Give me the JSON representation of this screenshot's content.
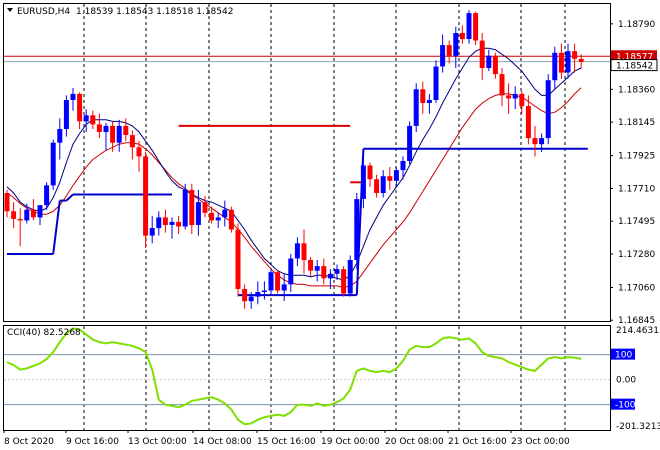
{
  "header": {
    "symbol": "EURUSD,H4",
    "ohlc": "1.18539 1.18543 1.18518 1.18542"
  },
  "colors": {
    "bull": "#0000ff",
    "bear": "#ff0000",
    "ma_fast": "#000080",
    "ma_slow": "#cc0000",
    "band": "#0000cc",
    "band_upper": "#dd0000",
    "cci": "#7fe000",
    "price_line": "#cc0000",
    "grid": "#000000",
    "level_bg": "#0000ff"
  },
  "chart_data": [
    {
      "type": "candlestick",
      "title": "EURUSD,H4",
      "price_axis_labels": [
        "1.18790",
        "1.18575",
        "1.18360",
        "1.18145",
        "1.17925",
        "1.17710",
        "1.17495",
        "1.17280",
        "1.17060",
        "1.16845"
      ],
      "ylim": [
        1.1684,
        1.1892
      ],
      "current_price_label": "1.18542",
      "upper_price_label": "1.18577",
      "horizontal_line": 1.18577,
      "x_tick_labels": [
        "8 Oct 2020",
        "9 Oct 16:00",
        "13 Oct 00:00",
        "14 Oct 08:00",
        "15 Oct 16:00",
        "19 Oct 00:00",
        "20 Oct 08:00",
        "21 Oct 16:00",
        "23 Oct 00:00"
      ],
      "candles": [
        [
          1.1768,
          1.177,
          1.1752,
          1.1756
        ],
        [
          1.1756,
          1.1762,
          1.1745,
          1.1751
        ],
        [
          1.1751,
          1.1758,
          1.1733,
          1.175
        ],
        [
          1.175,
          1.1761,
          1.1748,
          1.1757
        ],
        [
          1.1757,
          1.1764,
          1.175,
          1.1752
        ],
        [
          1.1752,
          1.176,
          1.1747,
          1.176
        ],
        [
          1.176,
          1.1775,
          1.1757,
          1.1773
        ],
        [
          1.1773,
          1.1803,
          1.177,
          1.1801
        ],
        [
          1.1801,
          1.1817,
          1.179,
          1.181
        ],
        [
          1.181,
          1.1832,
          1.1805,
          1.1829
        ],
        [
          1.1829,
          1.1837,
          1.1822,
          1.1833
        ],
        [
          1.1833,
          1.1834,
          1.181,
          1.1815
        ],
        [
          1.1815,
          1.1823,
          1.1808,
          1.1819
        ],
        [
          1.1819,
          1.1822,
          1.181,
          1.1813
        ],
        [
          1.1813,
          1.182,
          1.1804,
          1.1808
        ],
        [
          1.1808,
          1.1814,
          1.1796,
          1.1812
        ],
        [
          1.1812,
          1.1815,
          1.1795,
          1.1801
        ],
        [
          1.1801,
          1.1816,
          1.1795,
          1.1812
        ],
        [
          1.1812,
          1.1817,
          1.1802,
          1.1806
        ],
        [
          1.1806,
          1.1809,
          1.179,
          1.1798
        ],
        [
          1.1798,
          1.1802,
          1.1782,
          1.1792
        ],
        [
          1.1792,
          1.1795,
          1.1732,
          1.174
        ],
        [
          1.174,
          1.1753,
          1.1735,
          1.1745
        ],
        [
          1.1745,
          1.1756,
          1.174,
          1.1752
        ],
        [
          1.1752,
          1.1757,
          1.1742,
          1.1747
        ],
        [
          1.1747,
          1.1752,
          1.1738,
          1.1749
        ],
        [
          1.1749,
          1.1753,
          1.1741,
          1.1746
        ],
        [
          1.1746,
          1.1774,
          1.1744,
          1.177
        ],
        [
          1.177,
          1.1774,
          1.1741,
          1.1747
        ],
        [
          1.1747,
          1.177,
          1.174,
          1.1762
        ],
        [
          1.1762,
          1.1766,
          1.1752,
          1.1755
        ],
        [
          1.1755,
          1.1759,
          1.1748,
          1.175
        ],
        [
          1.175,
          1.1755,
          1.1745,
          1.1752
        ],
        [
          1.1752,
          1.1763,
          1.1746,
          1.1757
        ],
        [
          1.1757,
          1.1759,
          1.1742,
          1.1744
        ],
        [
          1.1744,
          1.1748,
          1.17,
          1.1705
        ],
        [
          1.1705,
          1.1708,
          1.1692,
          1.1697
        ],
        [
          1.1697,
          1.1703,
          1.1692,
          1.17
        ],
        [
          1.17,
          1.171,
          1.1695,
          1.1703
        ],
        [
          1.1703,
          1.171,
          1.1698,
          1.1704
        ],
        [
          1.1704,
          1.1718,
          1.1702,
          1.1716
        ],
        [
          1.1716,
          1.1717,
          1.1702,
          1.1704
        ],
        [
          1.1704,
          1.1715,
          1.1697,
          1.1708
        ],
        [
          1.1708,
          1.1728,
          1.1703,
          1.1725
        ],
        [
          1.1725,
          1.1739,
          1.172,
          1.1735
        ],
        [
          1.1735,
          1.1744,
          1.1715,
          1.1724
        ],
        [
          1.1724,
          1.1726,
          1.1713,
          1.1717
        ],
        [
          1.1717,
          1.1724,
          1.171,
          1.172
        ],
        [
          1.172,
          1.1725,
          1.1708,
          1.1712
        ],
        [
          1.1712,
          1.1718,
          1.1705,
          1.1715
        ],
        [
          1.1715,
          1.1721,
          1.1711,
          1.1718
        ],
        [
          1.1718,
          1.172,
          1.17,
          1.1702
        ],
        [
          1.1702,
          1.1727,
          1.17,
          1.1724
        ],
        [
          1.1724,
          1.1768,
          1.1718,
          1.1764
        ],
        [
          1.1764,
          1.179,
          1.1758,
          1.1786
        ],
        [
          1.1786,
          1.1788,
          1.1772,
          1.1777
        ],
        [
          1.1777,
          1.178,
          1.1765,
          1.1768
        ],
        [
          1.1768,
          1.1783,
          1.1765,
          1.1779
        ],
        [
          1.1779,
          1.1785,
          1.177,
          1.1776
        ],
        [
          1.1776,
          1.1785,
          1.1772,
          1.1783
        ],
        [
          1.1783,
          1.1792,
          1.1777,
          1.1789
        ],
        [
          1.1789,
          1.1815,
          1.1787,
          1.1812
        ],
        [
          1.1812,
          1.184,
          1.1808,
          1.1836
        ],
        [
          1.1836,
          1.1841,
          1.182,
          1.1827
        ],
        [
          1.1827,
          1.1833,
          1.182,
          1.1829
        ],
        [
          1.1829,
          1.1855,
          1.1827,
          1.1851
        ],
        [
          1.1851,
          1.1872,
          1.1847,
          1.1865
        ],
        [
          1.1865,
          1.1868,
          1.1853,
          1.1858
        ],
        [
          1.1858,
          1.1877,
          1.185,
          1.1873
        ],
        [
          1.1873,
          1.1878,
          1.1866,
          1.1869
        ],
        [
          1.1869,
          1.1888,
          1.1866,
          1.1886
        ],
        [
          1.1886,
          1.1887,
          1.1865,
          1.1868
        ],
        [
          1.1868,
          1.1873,
          1.1842,
          1.185
        ],
        [
          1.185,
          1.1862,
          1.1848,
          1.1858
        ],
        [
          1.1858,
          1.186,
          1.1843,
          1.1846
        ],
        [
          1.1846,
          1.185,
          1.1825,
          1.1832
        ],
        [
          1.1832,
          1.184,
          1.182,
          1.183
        ],
        [
          1.183,
          1.1838,
          1.1823,
          1.1833
        ],
        [
          1.1833,
          1.1835,
          1.182,
          1.1825
        ],
        [
          1.1825,
          1.1832,
          1.18,
          1.1804
        ],
        [
          1.1804,
          1.1812,
          1.1792,
          1.18
        ],
        [
          1.18,
          1.1807,
          1.1795,
          1.1804
        ],
        [
          1.1804,
          1.1846,
          1.18,
          1.1842
        ],
        [
          1.1842,
          1.1864,
          1.1836,
          1.186
        ],
        [
          1.186,
          1.1866,
          1.1843,
          1.1847
        ],
        [
          1.1847,
          1.1866,
          1.1843,
          1.1861
        ],
        [
          1.1861,
          1.1866,
          1.1847,
          1.1856
        ],
        [
          1.1856,
          1.1859,
          1.185,
          1.1854
        ]
      ],
      "ma_fast": [
        1.1772,
        1.1768,
        1.1762,
        1.1759,
        1.1757,
        1.1756,
        1.1758,
        1.1765,
        1.1775,
        1.1788,
        1.18,
        1.1807,
        1.1813,
        1.1816,
        1.1816,
        1.1816,
        1.1815,
        1.1815,
        1.1814,
        1.1812,
        1.1808,
        1.1802,
        1.1796,
        1.1789,
        1.1782,
        1.1776,
        1.1772,
        1.177,
        1.1767,
        1.1765,
        1.1763,
        1.1762,
        1.176,
        1.1758,
        1.1756,
        1.175,
        1.1744,
        1.1737,
        1.1731,
        1.1725,
        1.1721,
        1.1717,
        1.1715,
        1.1714,
        1.1714,
        1.1714,
        1.1713,
        1.1714,
        1.1714,
        1.1713,
        1.1712,
        1.1711,
        1.1714,
        1.1722,
        1.1733,
        1.1744,
        1.1752,
        1.176,
        1.1766,
        1.1772,
        1.1778,
        1.1786,
        1.1795,
        1.1803,
        1.181,
        1.1818,
        1.1827,
        1.1835,
        1.1843,
        1.185,
        1.1857,
        1.1861,
        1.1863,
        1.1863,
        1.1862,
        1.1859,
        1.1856,
        1.1852,
        1.1848,
        1.1842,
        1.1836,
        1.1832,
        1.1832,
        1.1836,
        1.184,
        1.1844,
        1.1848,
        1.185
      ],
      "ma_slow": [
        1.1768,
        1.1765,
        1.1761,
        1.1758,
        1.1756,
        1.1754,
        1.1754,
        1.1756,
        1.176,
        1.1766,
        1.1773,
        1.1779,
        1.1785,
        1.179,
        1.1793,
        1.1796,
        1.1798,
        1.18,
        1.1801,
        1.1801,
        1.18,
        1.1797,
        1.1793,
        1.1788,
        1.1783,
        1.1778,
        1.1774,
        1.1771,
        1.1767,
        1.1764,
        1.1761,
        1.1758,
        1.1755,
        1.1752,
        1.1749,
        1.1744,
        1.1739,
        1.1733,
        1.1728,
        1.1723,
        1.1718,
        1.1714,
        1.1711,
        1.1709,
        1.1708,
        1.1708,
        1.1707,
        1.1707,
        1.1707,
        1.1707,
        1.1707,
        1.1706,
        1.1707,
        1.171,
        1.1716,
        1.1722,
        1.1728,
        1.1734,
        1.1739,
        1.1744,
        1.1749,
        1.1755,
        1.1762,
        1.1769,
        1.1776,
        1.1783,
        1.179,
        1.1797,
        1.1804,
        1.1811,
        1.1817,
        1.1823,
        1.1827,
        1.183,
        1.1832,
        1.1833,
        1.1833,
        1.1832,
        1.1831,
        1.1828,
        1.1825,
        1.1822,
        1.182,
        1.1821,
        1.1824,
        1.1828,
        1.1833,
        1.1837
      ],
      "band_lower": [
        {
          "from": 0,
          "to": 7,
          "value": 1.1728
        },
        {
          "from": 8,
          "to": 9,
          "value": 1.1763
        },
        {
          "from": 10,
          "to": 25,
          "value": 1.1767
        },
        {
          "from": 35,
          "to": 53,
          "value": 1.1701
        },
        {
          "from": 54,
          "to": 88,
          "value": 1.1797
        }
      ],
      "band_upper": [
        {
          "from": 26,
          "to": 52,
          "value": 1.1812
        },
        {
          "from": 52,
          "to": 54,
          "value": 1.1775
        }
      ]
    },
    {
      "type": "line",
      "title": "CCI(40)",
      "value_label": "82.5268",
      "axis_labels": [
        "214.4631",
        "100",
        "0.00",
        "-100",
        "-201.3213"
      ],
      "ylim": [
        -201.3213,
        214.4631
      ],
      "levels": [
        100,
        -100
      ],
      "series": [
        {
          "name": "CCI(40)",
          "values": [
            70,
            58,
            40,
            45,
            55,
            65,
            82,
            110,
            150,
            185,
            205,
            200,
            180,
            160,
            150,
            145,
            150,
            145,
            140,
            135,
            125,
            110,
            40,
            -80,
            -100,
            -105,
            -110,
            -100,
            -85,
            -80,
            -75,
            -70,
            -80,
            -95,
            -120,
            -160,
            -178,
            -175,
            -160,
            -150,
            -145,
            -140,
            -145,
            -130,
            -100,
            -100,
            -105,
            -95,
            -105,
            -100,
            -90,
            -75,
            -40,
            35,
            45,
            35,
            30,
            35,
            30,
            45,
            75,
            120,
            135,
            130,
            130,
            145,
            165,
            170,
            165,
            160,
            165,
            145,
            110,
            95,
            90,
            85,
            70,
            60,
            50,
            40,
            35,
            60,
            85,
            90,
            85,
            90,
            88,
            83
          ]
        }
      ]
    }
  ]
}
